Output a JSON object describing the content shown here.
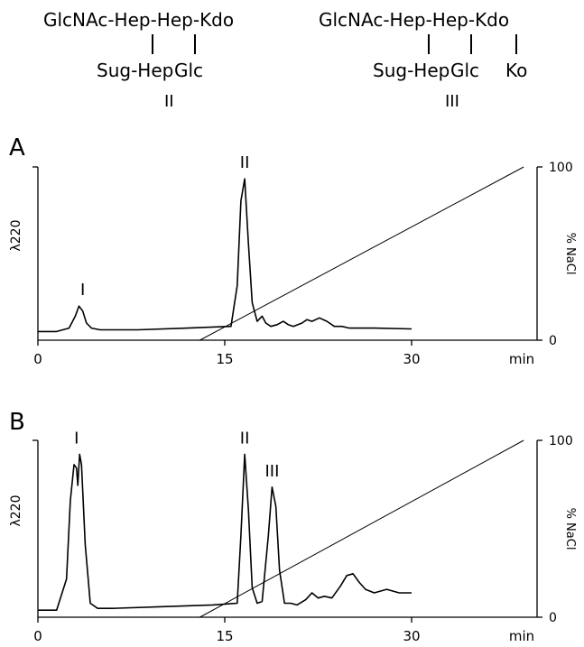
{
  "structures": [
    {
      "chain": "GlcNAc-Hep-Hep-Kdo",
      "branches": [
        "Sug-Hep",
        "Glc"
      ],
      "label": "II"
    },
    {
      "chain": "GlcNAc-Hep-Hep-Kdo",
      "branches": [
        "Sug-Hep",
        "Glc",
        "Ko"
      ],
      "label": "III"
    }
  ],
  "chart_data": [
    {
      "type": "line",
      "panel_label": "A",
      "ylabel_left": "λ220",
      "ylabel_right": "% NaCl",
      "xlabel": "min",
      "x_ticks": [
        "0",
        "15",
        "30"
      ],
      "y_right_ticks": [
        "0",
        "100"
      ],
      "xlim": [
        0,
        39
      ],
      "ylim_right": [
        0,
        100
      ],
      "series": [
        {
          "role": "absorbance",
          "x": [
            0,
            1.5,
            2.5,
            3.0,
            3.3,
            3.6,
            3.9,
            4.3,
            5.0,
            8,
            12,
            15.5,
            16.0,
            16.3,
            16.6,
            16.9,
            17.2,
            17.6,
            18.0,
            18.3,
            18.7,
            19.2,
            19.7,
            20.1,
            20.5,
            21.2,
            21.6,
            22.0,
            22.6,
            23.2,
            23.8,
            24.4,
            25,
            27,
            30
          ],
          "y": [
            0.03,
            0.03,
            0.05,
            0.12,
            0.18,
            0.15,
            0.08,
            0.05,
            0.04,
            0.04,
            0.05,
            0.06,
            0.3,
            0.8,
            0.93,
            0.55,
            0.2,
            0.09,
            0.12,
            0.08,
            0.06,
            0.07,
            0.09,
            0.07,
            0.06,
            0.08,
            0.1,
            0.09,
            0.11,
            0.09,
            0.06,
            0.06,
            0.05,
            0.05,
            0.045
          ]
        },
        {
          "role": "gradient",
          "unit": "% NaCl",
          "x": [
            0,
            13,
            39
          ],
          "y": [
            0,
            0,
            100
          ]
        }
      ],
      "peak_labels": [
        {
          "text": "I",
          "x": 3.6
        },
        {
          "text": "II",
          "x": 16.6
        }
      ]
    },
    {
      "type": "line",
      "panel_label": "B",
      "ylabel_left": "λ220",
      "ylabel_right": "% NaCl",
      "xlabel": "min",
      "x_ticks": [
        "0",
        "15",
        "30"
      ],
      "y_right_ticks": [
        "0",
        "100"
      ],
      "xlim": [
        0,
        39
      ],
      "ylim_right": [
        0,
        100
      ],
      "series": [
        {
          "role": "absorbance",
          "x": [
            0,
            1.5,
            2.3,
            2.6,
            2.9,
            3.1,
            3.2,
            3.35,
            3.5,
            3.8,
            4.2,
            4.8,
            6,
            10,
            14,
            16.0,
            16.3,
            16.6,
            16.9,
            17.2,
            17.6,
            18.0,
            18.5,
            18.8,
            19.1,
            19.4,
            19.8,
            20.3,
            20.8,
            21.5,
            22.0,
            22.5,
            23.0,
            23.6,
            24.3,
            24.8,
            25.3,
            25.8,
            26.3,
            27,
            28,
            29,
            30
          ],
          "y": [
            0.02,
            0.02,
            0.2,
            0.65,
            0.86,
            0.84,
            0.74,
            0.92,
            0.86,
            0.4,
            0.06,
            0.03,
            0.03,
            0.04,
            0.05,
            0.06,
            0.45,
            0.92,
            0.6,
            0.15,
            0.06,
            0.07,
            0.45,
            0.73,
            0.62,
            0.25,
            0.06,
            0.06,
            0.05,
            0.08,
            0.12,
            0.09,
            0.1,
            0.09,
            0.16,
            0.22,
            0.23,
            0.18,
            0.14,
            0.12,
            0.14,
            0.12,
            0.12
          ]
        },
        {
          "role": "gradient",
          "unit": "% NaCl",
          "x": [
            0,
            13,
            39
          ],
          "y": [
            0,
            0,
            100
          ]
        }
      ],
      "peak_labels": [
        {
          "text": "I",
          "x": 3.1
        },
        {
          "text": "II",
          "x": 16.6
        },
        {
          "text": "III",
          "x": 18.8
        }
      ]
    }
  ]
}
